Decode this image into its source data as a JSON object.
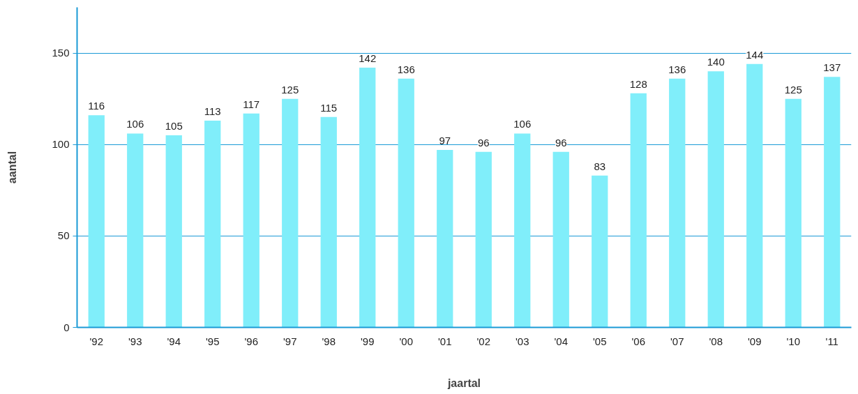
{
  "chart_data": {
    "type": "bar",
    "xlabel": "jaartal",
    "ylabel": "aantal",
    "categories": [
      "'92",
      "'93",
      "'94",
      "'95",
      "'96",
      "'97",
      "'98",
      "'99",
      "'00",
      "'01",
      "'02",
      "'03",
      "'04",
      "'05",
      "'06",
      "'07",
      "'08",
      "'09",
      "'10",
      "'11"
    ],
    "values": [
      116,
      106,
      105,
      113,
      117,
      125,
      115,
      142,
      136,
      97,
      96,
      106,
      96,
      83,
      128,
      136,
      140,
      144,
      125,
      137
    ],
    "color": "#80eefa",
    "ylim": [
      0,
      175
    ],
    "yticks": [
      0,
      50,
      100,
      150
    ],
    "grid": "y",
    "data_labels": true
  }
}
